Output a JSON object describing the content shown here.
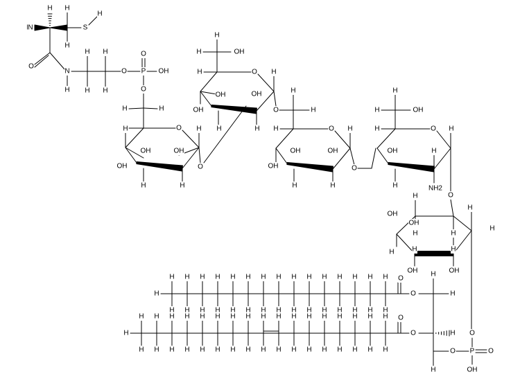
{
  "diagram": {
    "type": "chemical-structure",
    "background": "#ffffff",
    "ink": "#000000",
    "atom_labels": {
      "amine": "N",
      "amine_h": "H",
      "thiol": "S",
      "hydrogen": "H",
      "carbonyl_o": "O",
      "amide_n": "N",
      "ether_o": "O",
      "phosphorus": "P",
      "phosphate_o": "O",
      "hydroxyl": "OH",
      "amino_group": "NH2"
    }
  }
}
